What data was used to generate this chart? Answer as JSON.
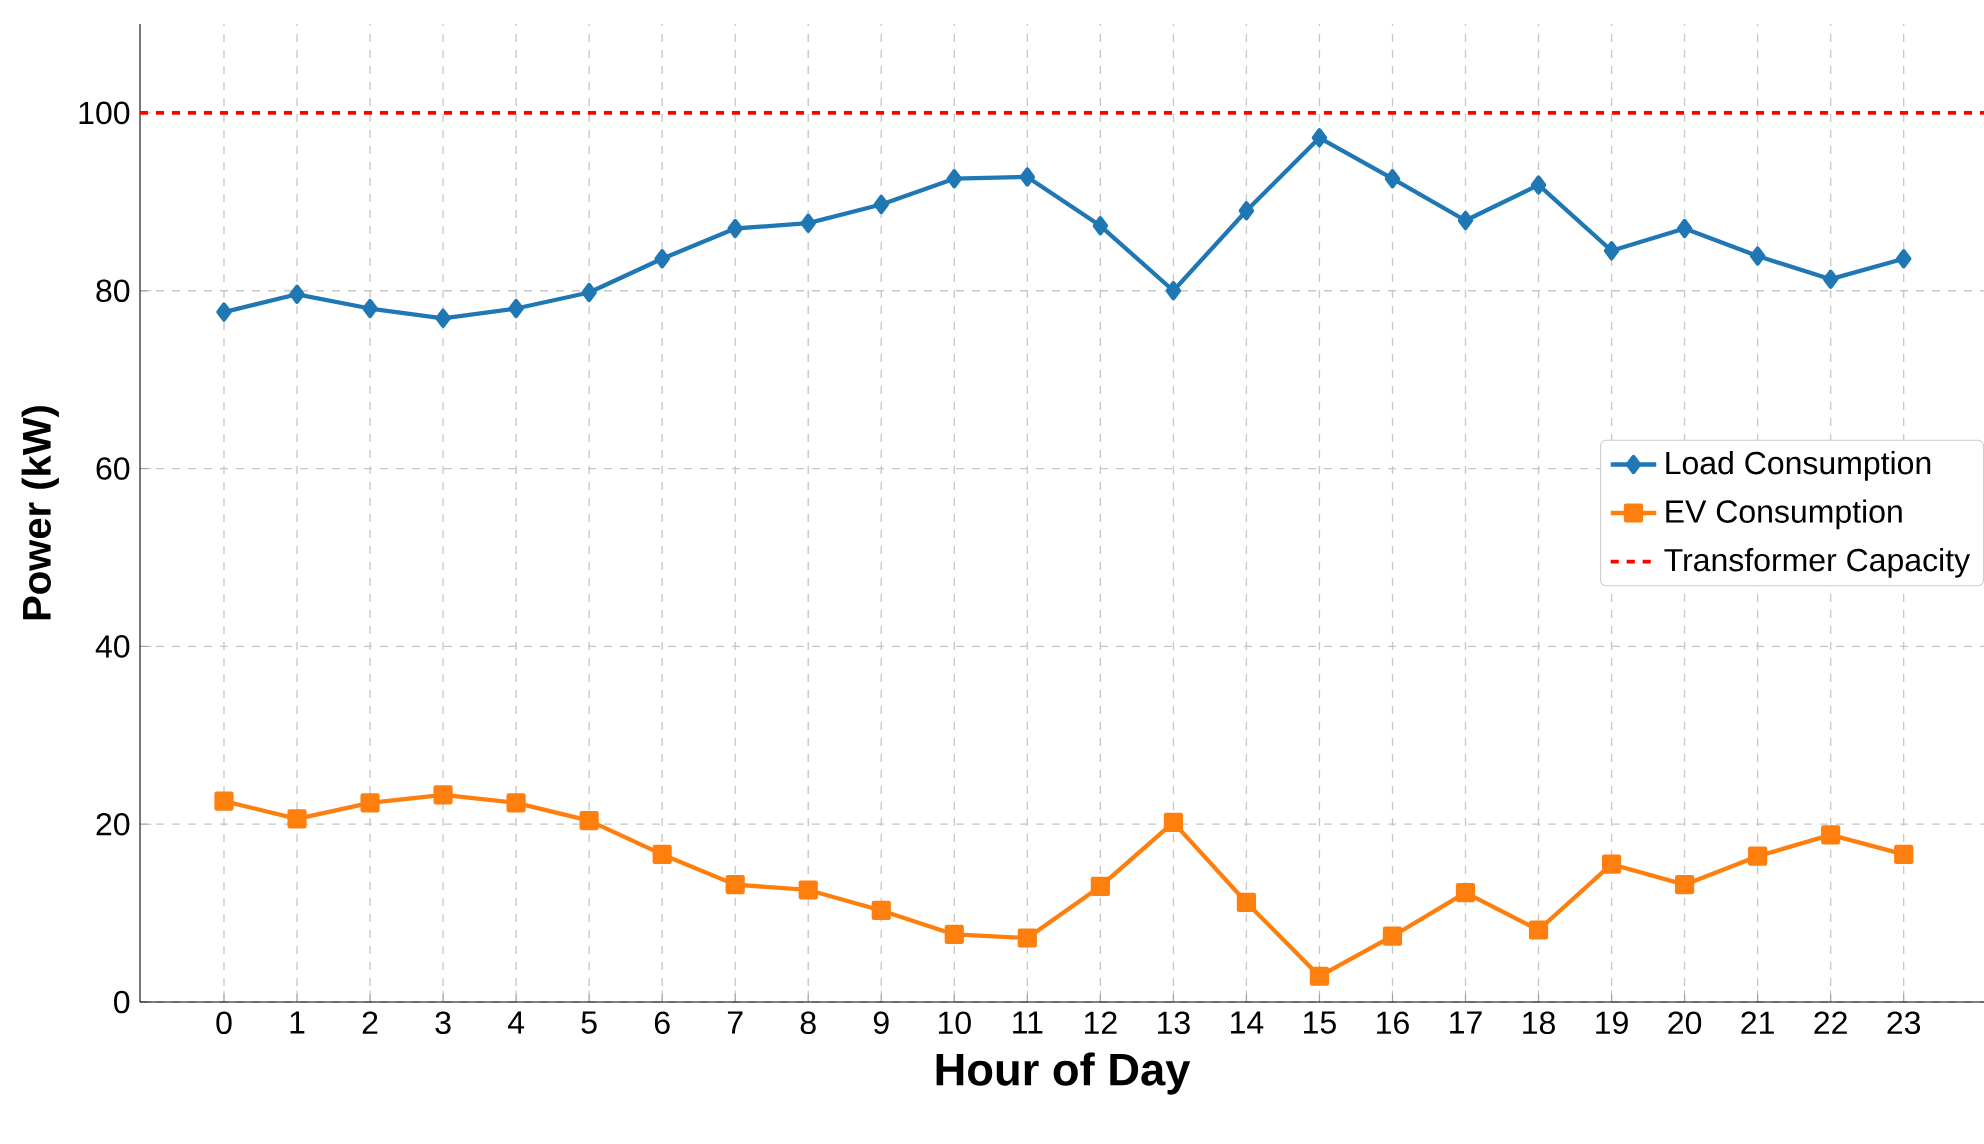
{
  "chart_data": {
    "type": "line",
    "xlabel": "Hour of Day",
    "ylabel": "Power (kW)",
    "x": [
      0,
      1,
      2,
      3,
      4,
      5,
      6,
      7,
      8,
      9,
      10,
      11,
      12,
      13,
      14,
      15,
      16,
      17,
      18,
      19,
      20,
      21,
      22,
      23
    ],
    "series": [
      {
        "name": "Load Consumption",
        "color": "#1f77b4",
        "marker": "diamond",
        "values": [
          77.6,
          79.6,
          78.0,
          76.9,
          78.0,
          79.8,
          83.6,
          87.0,
          87.6,
          89.7,
          92.6,
          92.8,
          87.3,
          80.0,
          89.0,
          97.2,
          92.6,
          87.9,
          91.9,
          84.5,
          87.0,
          83.9,
          81.3,
          83.6
        ]
      },
      {
        "name": "EV Consumption",
        "color": "#ff7f0e",
        "marker": "square",
        "values": [
          22.6,
          20.6,
          22.4,
          23.3,
          22.4,
          20.4,
          16.6,
          13.2,
          12.6,
          10.3,
          7.6,
          7.2,
          13.0,
          20.2,
          11.2,
          2.9,
          7.4,
          12.3,
          8.1,
          15.5,
          13.2,
          16.4,
          18.8,
          16.6
        ]
      }
    ],
    "ref_lines": [
      {
        "axis": "y",
        "value": 100,
        "label": "Transformer Capacity",
        "color": "#ff0000",
        "line_style": "dashed"
      }
    ],
    "xlim": [
      -1.15,
      24.1
    ],
    "ylim": [
      0,
      110
    ],
    "xticks": [
      0,
      1,
      2,
      3,
      4,
      5,
      6,
      7,
      8,
      9,
      10,
      11,
      12,
      13,
      14,
      15,
      16,
      17,
      18,
      19,
      20,
      21,
      22,
      23
    ],
    "yticks": [
      0,
      20,
      40,
      60,
      80,
      100
    ],
    "grid": true,
    "legend": "right",
    "line_style": "solid"
  }
}
